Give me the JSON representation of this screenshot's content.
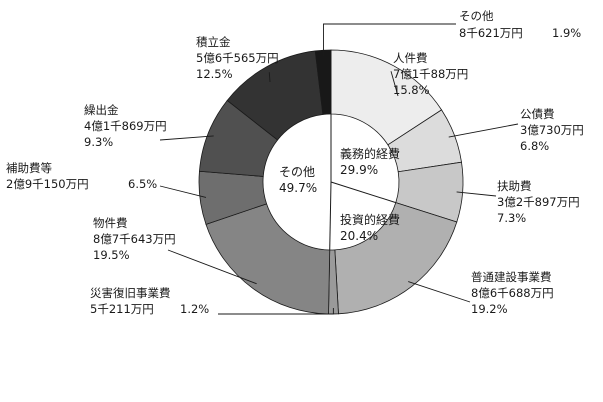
{
  "chart_data": {
    "type": "pie",
    "outer_ring": [
      {
        "name": "人件費",
        "amount": "7億1千88万円",
        "percent": 15.8,
        "percent_label": "15.8%",
        "color": "#ededed"
      },
      {
        "name": "公債費",
        "amount": "3億730万円",
        "percent": 6.8,
        "percent_label": "6.8%",
        "color": "#dcdcdc"
      },
      {
        "name": "扶助費",
        "amount": "3億2千897万円",
        "percent": 7.3,
        "percent_label": "7.3%",
        "color": "#c8c8c8"
      },
      {
        "name": "普通建設事業費",
        "amount": "8億6千688万円",
        "percent": 19.2,
        "percent_label": "19.2%",
        "color": "#b0b0b0"
      },
      {
        "name": "災害復旧事業費",
        "amount": "5千211万円",
        "percent": 1.2,
        "percent_label": "1.2%",
        "color": "#9a9a9a"
      },
      {
        "name": "物件費",
        "amount": "8億7千643万円",
        "percent": 19.5,
        "percent_label": "19.5%",
        "color": "#858585"
      },
      {
        "name": "補助費等",
        "amount": "2億9千150万円",
        "percent": 6.5,
        "percent_label": "6.5%",
        "color": "#6e6e6e"
      },
      {
        "name": "繰出金",
        "amount": "4億1千869万円",
        "percent": 9.3,
        "percent_label": "9.3%",
        "color": "#505050"
      },
      {
        "name": "積立金",
        "amount": "5億6千565万円",
        "percent": 12.5,
        "percent_label": "12.5%",
        "color": "#333333"
      },
      {
        "name": "その他",
        "amount": "8千621万円",
        "percent": 1.9,
        "percent_label": "1.9%",
        "color": "#181818"
      }
    ],
    "inner_groups": [
      {
        "name": "義務的経費",
        "percent": 29.9,
        "percent_label": "29.9%"
      },
      {
        "name": "投資的経費",
        "percent": 20.4,
        "percent_label": "20.4%"
      },
      {
        "name": "その他",
        "percent": 49.7,
        "percent_label": "49.7%"
      }
    ]
  }
}
